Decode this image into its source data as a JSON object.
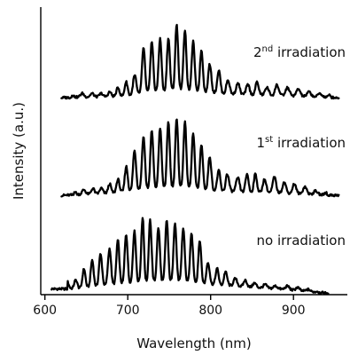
{
  "chart_data": {
    "type": "line",
    "xlabel": "Wavelength (nm)",
    "ylabel": "Intensity (a.u.)",
    "xlim": [
      595,
      965
    ],
    "ylim": [
      0,
      1
    ],
    "xticks": [
      600,
      700,
      800,
      900
    ],
    "xtick_labels": [
      "600",
      "700",
      "800",
      "900"
    ],
    "yticks_shown": false,
    "grid": false,
    "legend": "none",
    "series": [
      {
        "name": "no irradiation",
        "label_main": "no irradiation",
        "label_sup": "",
        "label_suffix": "",
        "x_range": [
          608,
          942
        ],
        "peaks": [
          {
            "x": 627,
            "y": 0.045
          },
          {
            "x": 637,
            "y": 0.05
          },
          {
            "x": 647,
            "y": 0.09
          },
          {
            "x": 657,
            "y": 0.12
          },
          {
            "x": 667,
            "y": 0.14
          },
          {
            "x": 678,
            "y": 0.16
          },
          {
            "x": 688,
            "y": 0.19
          },
          {
            "x": 698,
            "y": 0.21
          },
          {
            "x": 708,
            "y": 0.22
          },
          {
            "x": 718,
            "y": 0.27
          },
          {
            "x": 727,
            "y": 0.26
          },
          {
            "x": 737,
            "y": 0.23
          },
          {
            "x": 747,
            "y": 0.26
          },
          {
            "x": 757,
            "y": 0.25
          },
          {
            "x": 767,
            "y": 0.23
          },
          {
            "x": 777,
            "y": 0.21
          },
          {
            "x": 787,
            "y": 0.19
          },
          {
            "x": 797,
            "y": 0.11
          },
          {
            "x": 808,
            "y": 0.09
          },
          {
            "x": 818,
            "y": 0.08
          },
          {
            "x": 830,
            "y": 0.055
          },
          {
            "x": 842,
            "y": 0.05
          },
          {
            "x": 853,
            "y": 0.04
          },
          {
            "x": 866,
            "y": 0.035
          },
          {
            "x": 878,
            "y": 0.03
          },
          {
            "x": 893,
            "y": 0.03
          },
          {
            "x": 905,
            "y": 0.025
          },
          {
            "x": 918,
            "y": 0.018
          },
          {
            "x": 930,
            "y": 0.012
          }
        ],
        "baseline": [
          {
            "x": 608,
            "y": 0.02
          },
          {
            "x": 640,
            "y": 0.02
          },
          {
            "x": 700,
            "y": 0.03
          },
          {
            "x": 760,
            "y": 0.035
          },
          {
            "x": 820,
            "y": 0.03
          },
          {
            "x": 880,
            "y": 0.02
          },
          {
            "x": 942,
            "y": 0.005
          }
        ]
      },
      {
        "name": "1st irradiation",
        "label_main": "1",
        "label_sup": "st",
        "label_suffix": " irradiation",
        "x_range": [
          620,
          955
        ],
        "peaks": [
          {
            "x": 635,
            "y": 0.36
          },
          {
            "x": 647,
            "y": 0.365
          },
          {
            "x": 658,
            "y": 0.37
          },
          {
            "x": 668,
            "y": 0.37
          },
          {
            "x": 678,
            "y": 0.385
          },
          {
            "x": 688,
            "y": 0.4
          },
          {
            "x": 698,
            "y": 0.445
          },
          {
            "x": 708,
            "y": 0.5
          },
          {
            "x": 719,
            "y": 0.55
          },
          {
            "x": 729,
            "y": 0.57
          },
          {
            "x": 739,
            "y": 0.58
          },
          {
            "x": 749,
            "y": 0.6
          },
          {
            "x": 759,
            "y": 0.61
          },
          {
            "x": 769,
            "y": 0.6
          },
          {
            "x": 779,
            "y": 0.56
          },
          {
            "x": 789,
            "y": 0.52
          },
          {
            "x": 799,
            "y": 0.48
          },
          {
            "x": 810,
            "y": 0.43
          },
          {
            "x": 820,
            "y": 0.42
          },
          {
            "x": 833,
            "y": 0.405
          },
          {
            "x": 844,
            "y": 0.42
          },
          {
            "x": 854,
            "y": 0.42
          },
          {
            "x": 865,
            "y": 0.4
          },
          {
            "x": 877,
            "y": 0.41
          },
          {
            "x": 889,
            "y": 0.39
          },
          {
            "x": 901,
            "y": 0.385
          },
          {
            "x": 914,
            "y": 0.375
          },
          {
            "x": 927,
            "y": 0.36
          },
          {
            "x": 940,
            "y": 0.355
          }
        ],
        "baseline": [
          {
            "x": 620,
            "y": 0.345
          },
          {
            "x": 700,
            "y": 0.355
          },
          {
            "x": 760,
            "y": 0.36
          },
          {
            "x": 830,
            "y": 0.355
          },
          {
            "x": 900,
            "y": 0.35
          },
          {
            "x": 955,
            "y": 0.345
          }
        ]
      },
      {
        "name": "2nd irradiation",
        "label_main": "2",
        "label_sup": "nd",
        "label_suffix": " irradiation",
        "x_range": [
          620,
          955
        ],
        "peaks": [
          {
            "x": 632,
            "y": 0.695
          },
          {
            "x": 645,
            "y": 0.7
          },
          {
            "x": 657,
            "y": 0.7
          },
          {
            "x": 668,
            "y": 0.7
          },
          {
            "x": 678,
            "y": 0.705
          },
          {
            "x": 688,
            "y": 0.72
          },
          {
            "x": 698,
            "y": 0.74
          },
          {
            "x": 708,
            "y": 0.76
          },
          {
            "x": 719,
            "y": 0.86
          },
          {
            "x": 729,
            "y": 0.88
          },
          {
            "x": 739,
            "y": 0.89
          },
          {
            "x": 749,
            "y": 0.89
          },
          {
            "x": 759,
            "y": 0.94
          },
          {
            "x": 769,
            "y": 0.92
          },
          {
            "x": 779,
            "y": 0.88
          },
          {
            "x": 789,
            "y": 0.85
          },
          {
            "x": 799,
            "y": 0.8
          },
          {
            "x": 810,
            "y": 0.78
          },
          {
            "x": 821,
            "y": 0.745
          },
          {
            "x": 833,
            "y": 0.735
          },
          {
            "x": 845,
            "y": 0.73
          },
          {
            "x": 856,
            "y": 0.74
          },
          {
            "x": 868,
            "y": 0.72
          },
          {
            "x": 880,
            "y": 0.73
          },
          {
            "x": 893,
            "y": 0.72
          },
          {
            "x": 906,
            "y": 0.715
          },
          {
            "x": 919,
            "y": 0.705
          },
          {
            "x": 932,
            "y": 0.7
          },
          {
            "x": 945,
            "y": 0.695
          }
        ],
        "baseline": [
          {
            "x": 620,
            "y": 0.685
          },
          {
            "x": 700,
            "y": 0.69
          },
          {
            "x": 760,
            "y": 0.7
          },
          {
            "x": 830,
            "y": 0.695
          },
          {
            "x": 900,
            "y": 0.69
          },
          {
            "x": 955,
            "y": 0.685
          }
        ]
      }
    ]
  }
}
